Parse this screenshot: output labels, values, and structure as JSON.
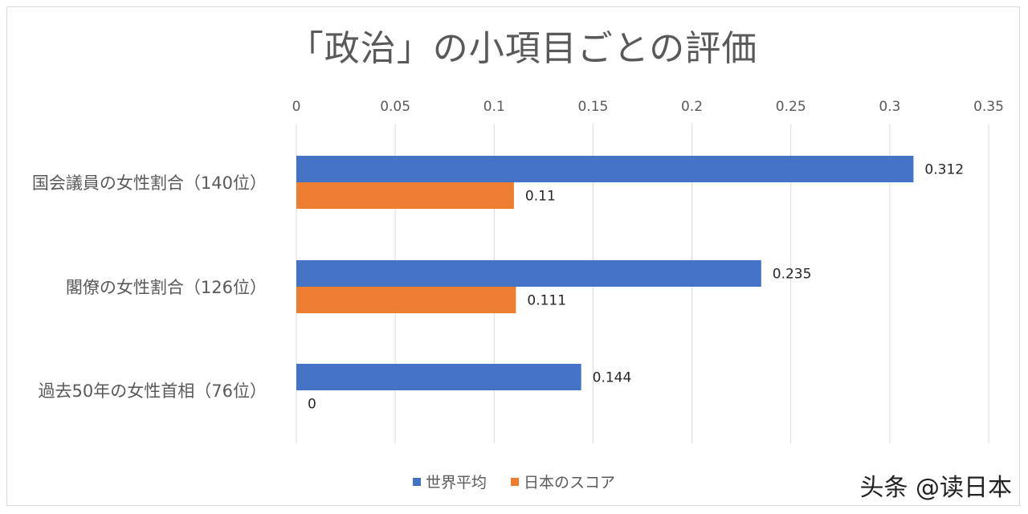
{
  "chart_data": {
    "type": "bar",
    "orientation": "horizontal",
    "title": "「政治」の小項目ごとの評価",
    "categories": [
      "国会議員の女性割合（140位）",
      "閣僚の女性割合（126位）",
      "過去50年の女性首相（76位）"
    ],
    "series": [
      {
        "name": "世界平均",
        "color": "#4472c4",
        "values": [
          0.312,
          0.235,
          0.144
        ],
        "labels": [
          "0.312",
          "0.235",
          "0.144"
        ]
      },
      {
        "name": "日本のスコア",
        "color": "#ed7d31",
        "values": [
          0.11,
          0.111,
          0
        ],
        "labels": [
          "0.11",
          "0.111",
          "0"
        ]
      }
    ],
    "xlim": [
      0,
      0.35
    ],
    "xticks": [
      0,
      0.05,
      0.1,
      0.15,
      0.2,
      0.25,
      0.3,
      0.35
    ],
    "xtick_labels": [
      "0",
      "0.05",
      "0.1",
      "0.15",
      "0.2",
      "0.25",
      "0.3",
      "0.35"
    ],
    "grid": true,
    "axis_position": "top",
    "legend_position": "bottom"
  },
  "watermark": "头条 @读日本"
}
